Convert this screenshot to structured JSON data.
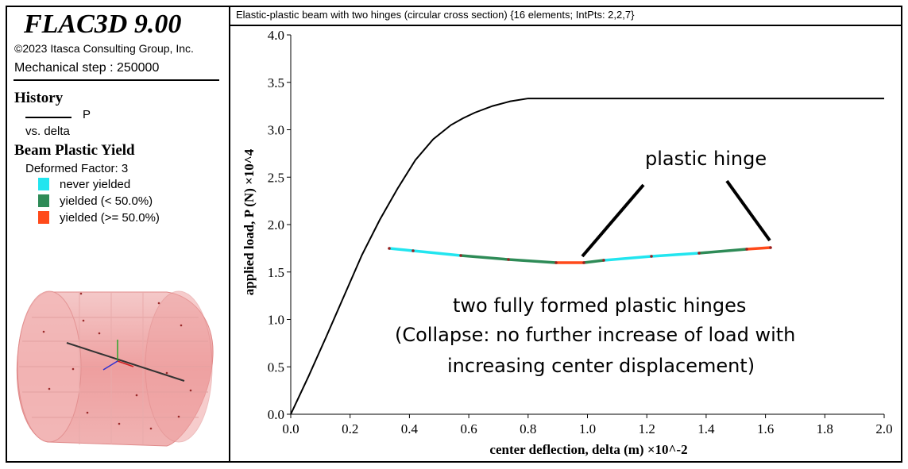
{
  "legend": {
    "brand": "FLAC3D 9.00",
    "copyright": "©2023 Itasca Consulting Group, Inc.",
    "step": "Mechanical step : 250000",
    "history_heading": "History",
    "history_series": "P",
    "history_vs": "vs. delta",
    "yield_heading": "Beam Plastic Yield",
    "deformed_factor": "Deformed Factor: 3",
    "items": [
      {
        "label": "never yielded",
        "color": "#22e5ef"
      },
      {
        "label": "yielded (< 50.0%)",
        "color": "#2e8b57"
      },
      {
        "label": "yielded (>= 50.0%)",
        "color": "#ff4a1a"
      }
    ]
  },
  "plot_title": "Elastic-plastic beam with two hinges (circular cross section) {16 elements; IntPts: 2,2,7}",
  "annotations": {
    "hinge_label": "plastic hinge",
    "summary_line1": "two fully formed plastic hinges",
    "summary_line2": "(Collapse: no further increase of load with",
    "summary_line3": "increasing center displacement)"
  },
  "chart_data": {
    "type": "line",
    "xlabel": "center deflection, delta (m) ×10^-2",
    "ylabel": "applied load, P (N) ×10^4",
    "xlim": [
      0,
      2.0
    ],
    "ylim": [
      0,
      4.0
    ],
    "xticks": [
      "0.0",
      "0.2",
      "0.4",
      "0.6",
      "0.8",
      "1.0",
      "1.2",
      "1.4",
      "1.6",
      "1.8",
      "2.0"
    ],
    "yticks": [
      "0.0",
      "0.5",
      "1.0",
      "1.5",
      "2.0",
      "2.5",
      "3.0",
      "3.5",
      "4.0"
    ],
    "grid": false,
    "series": [
      {
        "name": "P",
        "color": "#000000",
        "x": [
          0.0,
          0.06,
          0.12,
          0.18,
          0.24,
          0.3,
          0.36,
          0.42,
          0.48,
          0.54,
          0.58,
          0.62,
          0.68,
          0.74,
          0.8,
          1.0,
          1.5,
          2.0
        ],
        "y": [
          0.0,
          0.4,
          0.82,
          1.25,
          1.68,
          2.05,
          2.38,
          2.68,
          2.9,
          3.05,
          3.12,
          3.18,
          3.25,
          3.3,
          3.33,
          3.33,
          3.33,
          3.33
        ]
      }
    ]
  }
}
